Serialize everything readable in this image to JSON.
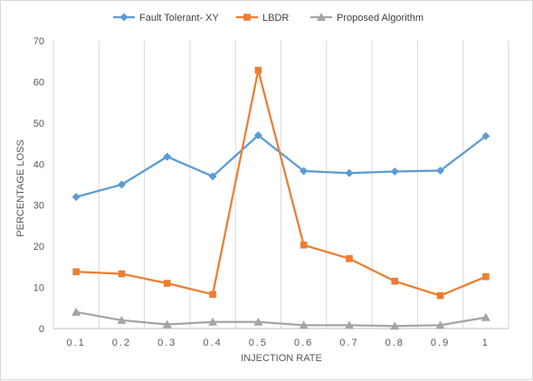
{
  "chart_data": {
    "type": "line",
    "title": "",
    "xlabel": "INJECTION RATE",
    "ylabel": "PERCENTAGE LOSS",
    "categories": [
      "0.1",
      "0.2",
      "0.3",
      "0.4",
      "0.5",
      "0.6",
      "0.7",
      "0.8",
      "0.9",
      "1"
    ],
    "ylim": [
      0,
      70
    ],
    "yticks": [
      0,
      10,
      20,
      30,
      40,
      50,
      60,
      70
    ],
    "grid": "vertical",
    "legend_position": "top",
    "series": [
      {
        "name": "Fault Tolerant- XY",
        "color": "#5b9bd5",
        "marker": "diamond",
        "values": [
          32,
          35,
          41.8,
          37,
          47,
          38.3,
          37.8,
          38.2,
          38.4,
          46.8
        ]
      },
      {
        "name": "LBDR",
        "color": "#ed7d31",
        "marker": "square",
        "values": [
          13.8,
          13.3,
          11,
          8.3,
          62.8,
          20.3,
          17,
          11.5,
          8,
          12.6
        ]
      },
      {
        "name": "Proposed Algorithm",
        "color": "#a5a5a5",
        "marker": "triangle",
        "values": [
          4,
          2,
          1,
          1.6,
          1.6,
          0.8,
          0.8,
          0.6,
          0.8,
          2.7
        ]
      }
    ]
  }
}
